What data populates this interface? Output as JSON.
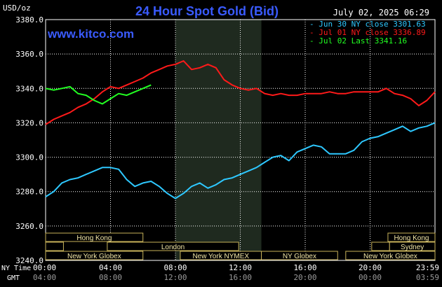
{
  "header": {
    "title": "24 Hour Spot Gold (Bid)",
    "timestamp": "July 02, 2025 06:29",
    "units": "USD/oz",
    "watermark": "www.kitco.com"
  },
  "colors": {
    "background": "#000000",
    "grid": "#ffffff",
    "title": "#3a5bff",
    "series_blue": "#2ec8ff",
    "series_red": "#ff1a1a",
    "series_green": "#22ff22",
    "session_fill": "#f2e6a6",
    "session_border": "#c7b25a",
    "shade": "#1f2a1f"
  },
  "chart_data": {
    "type": "line",
    "ylim": [
      3240,
      3380
    ],
    "yticks": [
      "3380.0",
      "3360.0",
      "3340.0",
      "3320.0",
      "3300.0",
      "3280.0",
      "3260.0",
      "3240.0"
    ],
    "ytick_values": [
      3380,
      3360,
      3340,
      3320,
      3300,
      3280,
      3260,
      3240
    ],
    "xlim": [
      0,
      24
    ],
    "xtick_values": [
      0,
      4,
      8,
      12,
      16,
      20,
      24
    ],
    "ny_time_ticks": [
      "00:00",
      "04:00",
      "08:00",
      "12:00",
      "16:00",
      "20:00",
      "23:59"
    ],
    "gmt_ticks": [
      "04:00",
      "08:00",
      "12:00",
      "16:00",
      "20:00",
      "00:00",
      "03:59"
    ],
    "row_labels": {
      "ny": "NY Time",
      "gmt": "GMT"
    },
    "shaded_range": [
      8.0,
      13.3
    ],
    "legend": [
      {
        "label": "- Jun 30 NY close 3301.63",
        "color": "#2ec8ff"
      },
      {
        "label": "- Jul 01 NY close 3336.89",
        "color": "#ff1a1a"
      },
      {
        "label": "- Jul 02 Last 3341.16",
        "color": "#22ff22"
      }
    ],
    "series": [
      {
        "name": "Jun 30 NY close 3301.63",
        "color": "#2ec8ff",
        "x": [
          0,
          0.5,
          1,
          1.5,
          2,
          2.5,
          3,
          3.5,
          4,
          4.5,
          5,
          5.5,
          6,
          6.5,
          7,
          7.5,
          8,
          8.5,
          9,
          9.5,
          10,
          10.5,
          11,
          11.5,
          12,
          12.5,
          13,
          13.5,
          14,
          14.5,
          15,
          15.5,
          16,
          16.5,
          17,
          17.5,
          18,
          18.5,
          19,
          19.5,
          20,
          20.5,
          21,
          21.5,
          22,
          22.5,
          23,
          23.5,
          24
        ],
        "y": [
          3277,
          3280,
          3285,
          3287,
          3288,
          3290,
          3292,
          3294,
          3294,
          3293,
          3287,
          3283,
          3285,
          3286,
          3283,
          3279,
          3276,
          3279,
          3283,
          3285,
          3282,
          3284,
          3287,
          3288,
          3290,
          3292,
          3294,
          3297,
          3300,
          3301,
          3298,
          3303,
          3305,
          3307,
          3306,
          3302,
          3302,
          3302,
          3304,
          3309,
          3311,
          3312,
          3314,
          3316,
          3318,
          3315,
          3317,
          3318,
          3320
        ]
      },
      {
        "name": "Jul 01 NY close 3336.89",
        "color": "#ff1a1a",
        "x": [
          0,
          0.5,
          1,
          1.5,
          2,
          2.5,
          3,
          3.5,
          4,
          4.5,
          5,
          5.5,
          6,
          6.5,
          7,
          7.5,
          8,
          8.5,
          9,
          9.5,
          10,
          10.5,
          11,
          11.5,
          12,
          12.5,
          13,
          13.5,
          14,
          14.5,
          15,
          15.5,
          16,
          16.5,
          17,
          17.5,
          18,
          18.5,
          19,
          19.5,
          20,
          20.5,
          21,
          21.5,
          22,
          22.5,
          23,
          23.5,
          24
        ],
        "y": [
          3319,
          3322,
          3324,
          3326,
          3329,
          3331,
          3334,
          3338,
          3341,
          3340,
          3342,
          3344,
          3346,
          3349,
          3351,
          3353,
          3354,
          3356,
          3351,
          3352,
          3354,
          3352,
          3345,
          3342,
          3340,
          3339,
          3340,
          3337,
          3336,
          3337,
          3336,
          3336,
          3337,
          3337,
          3337,
          3338,
          3337,
          3337,
          3338,
          3338,
          3338,
          3338,
          3340,
          3337,
          3336,
          3334,
          3330,
          3333,
          3338
        ]
      },
      {
        "name": "Jul 02 Last 3341.16",
        "color": "#22ff22",
        "x": [
          0,
          0.5,
          1,
          1.5,
          2,
          2.5,
          3,
          3.5,
          4,
          4.5,
          5,
          5.5,
          6,
          6.5
        ],
        "y": [
          3340,
          3339,
          3340,
          3341,
          3337,
          3336,
          3333,
          3331,
          3334,
          3337,
          3336,
          3338,
          3340,
          3342
        ]
      }
    ],
    "sessions": [
      {
        "label": "Hong Kong",
        "x0": 0.0,
        "x1": 6.0,
        "row": 0
      },
      {
        "label": "Hong Kong",
        "x0": 21.1,
        "x1": 24.0,
        "row": 0
      },
      {
        "label": "",
        "x0": 0.0,
        "x1": 1.1,
        "row": 1
      },
      {
        "label": "London",
        "x0": 3.8,
        "x1": 11.9,
        "row": 1
      },
      {
        "label": "",
        "x0": 20.1,
        "x1": 21.2,
        "row": 1
      },
      {
        "label": "Sydney",
        "x0": 21.2,
        "x1": 24.0,
        "row": 1
      },
      {
        "label": "New York Globex",
        "x0": 0.0,
        "x1": 6.0,
        "row": 2
      },
      {
        "label": "New York NYMEX",
        "x0": 8.3,
        "x1": 13.3,
        "row": 2
      },
      {
        "label": "NY Globex",
        "x0": 13.3,
        "x1": 18.0,
        "row": 2
      },
      {
        "label": "New York Globex",
        "x0": 18.5,
        "x1": 24.0,
        "row": 2
      }
    ]
  }
}
